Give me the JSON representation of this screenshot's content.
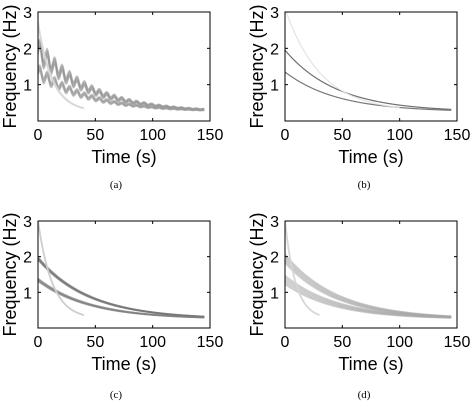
{
  "chart_data": [
    {
      "type": "spectrogram",
      "caption": "(a)",
      "xlabel": "Time (s)",
      "ylabel": "Frequency (Hz)",
      "xlim": [
        0,
        150
      ],
      "ylim": [
        0,
        3
      ],
      "xticks": [
        "0",
        "50",
        "100",
        "150"
      ],
      "yticks": [
        "1",
        "2",
        "3"
      ],
      "grid": false,
      "ridges": [
        {
          "f0": 1.95,
          "t_end": 145,
          "intensity": 0.55,
          "oscillation": 0.25,
          "spread": 0.12
        },
        {
          "f0": 1.35,
          "t_end": 145,
          "intensity": 0.5,
          "oscillation": 0.15,
          "spread": 0.08
        },
        {
          "f0": 2.7,
          "t_end": 40,
          "intensity": 0.2,
          "oscillation": 0.0,
          "spread": 0.05
        }
      ]
    },
    {
      "type": "spectrogram",
      "caption": "(b)",
      "xlabel": "Time (s)",
      "ylabel": "Frequency (Hz)",
      "xlim": [
        0,
        150
      ],
      "ylim": [
        0,
        3
      ],
      "xticks": [
        "0",
        "50",
        "100",
        "150"
      ],
      "yticks": [
        "1",
        "2",
        "3"
      ],
      "grid": false,
      "ridges": [
        {
          "f0": 1.95,
          "t_end": 145,
          "intensity": 0.8,
          "oscillation": 0.0,
          "spread": 0.0
        },
        {
          "f0": 1.35,
          "t_end": 145,
          "intensity": 0.75,
          "oscillation": 0.0,
          "spread": 0.0
        },
        {
          "f0": 3.1,
          "t_end": 100,
          "intensity": 0.15,
          "oscillation": 0.0,
          "spread": 0.0
        }
      ]
    },
    {
      "type": "spectrogram",
      "caption": "(c)",
      "xlabel": "Time (s)",
      "ylabel": "Frequency (Hz)",
      "xlim": [
        0,
        150
      ],
      "ylim": [
        0,
        3
      ],
      "xticks": [
        "0",
        "50",
        "100",
        "150"
      ],
      "yticks": [
        "1",
        "2",
        "3"
      ],
      "grid": false,
      "ridges": [
        {
          "f0": 1.95,
          "t_end": 145,
          "intensity": 0.7,
          "oscillation": 0.0,
          "spread": 0.04
        },
        {
          "f0": 1.35,
          "t_end": 145,
          "intensity": 0.65,
          "oscillation": 0.0,
          "spread": 0.04
        },
        {
          "f0": 3.0,
          "t_end": 40,
          "intensity": 0.25,
          "oscillation": 0.0,
          "spread": 0.02
        }
      ]
    },
    {
      "type": "spectrogram",
      "caption": "(d)",
      "xlabel": "Time (s)",
      "ylabel": "Frequency (Hz)",
      "xlim": [
        0,
        150
      ],
      "ylim": [
        0,
        3
      ],
      "xticks": [
        "0",
        "50",
        "100",
        "150"
      ],
      "yticks": [
        "1",
        "2",
        "3"
      ],
      "grid": false,
      "ridges": [
        {
          "f0": 1.95,
          "t_end": 145,
          "intensity": 0.45,
          "oscillation": 0.0,
          "spread": 0.12
        },
        {
          "f0": 1.35,
          "t_end": 145,
          "intensity": 0.45,
          "oscillation": 0.0,
          "spread": 0.12
        },
        {
          "f0": 3.0,
          "t_end": 30,
          "intensity": 0.2,
          "oscillation": 0.0,
          "spread": 0.02
        }
      ]
    }
  ]
}
